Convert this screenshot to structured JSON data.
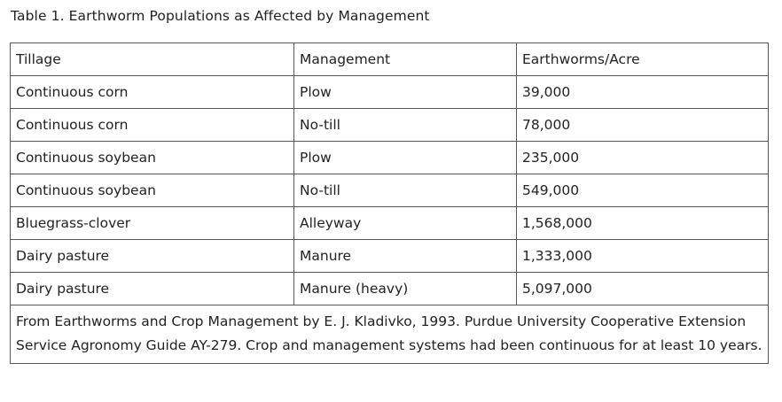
{
  "caption": "Table 1. Earthworm Populations as Affected by Management",
  "table": {
    "headers": [
      "Tillage",
      "Management",
      "Earthworms/Acre"
    ],
    "rows": [
      [
        "Continuous corn",
        "Plow",
        "39,000"
      ],
      [
        "Continuous corn",
        "No-till",
        "78,000"
      ],
      [
        "Continuous soybean",
        "Plow",
        "235,000"
      ],
      [
        "Continuous soybean",
        "No-till",
        "549,000"
      ],
      [
        "Bluegrass-clover",
        "Alleyway",
        "1,568,000"
      ],
      [
        "Dairy pasture",
        "Manure",
        "1,333,000"
      ],
      [
        "Dairy pasture",
        "Manure (heavy)",
        "5,097,000"
      ]
    ],
    "footnote": "From Earthworms and Crop Management by E. J. Kladivko, 1993. Purdue University Cooperative Extension Service Agronomy Guide AY-279. Crop and management systems had been continuous for at least 10 years."
  }
}
